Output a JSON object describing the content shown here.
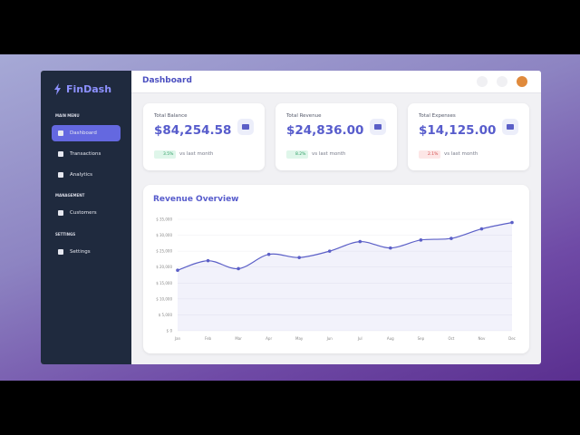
{
  "sidebar": {
    "logo": "FinDash",
    "sections": [
      {
        "heading": "MAIN MENU",
        "items": [
          "Dashboard",
          "Transactions",
          "Analytics"
        ]
      },
      {
        "heading": "MANAGEMENT",
        "items": [
          "Customers"
        ]
      },
      {
        "heading": "SETTINGS",
        "items": [
          "Settings"
        ]
      }
    ]
  },
  "header": {
    "title": "Dashboard"
  },
  "cards": [
    {
      "label": "Total Balance",
      "value": "$84,254.58",
      "change": "3.5%",
      "note": "vs last month"
    },
    {
      "label": "Total Revenue",
      "value": "$24,836.00",
      "change": "8.2%",
      "note": "vs last month"
    },
    {
      "label": "Total Expenses",
      "value": "$14,125.00",
      "change": "2.1%",
      "note": "vs last month"
    }
  ],
  "chart_data": {
    "type": "line",
    "title": "Revenue Overview",
    "color": "#5b5fc7",
    "area": true,
    "grid": true,
    "categories": [
      "Jan",
      "Feb",
      "Mar",
      "Apr",
      "May",
      "Jun",
      "Jul",
      "Aug",
      "Sep",
      "Oct",
      "Nov",
      "Dec"
    ],
    "values": [
      19000,
      22000,
      19500,
      24000,
      23000,
      25000,
      28000,
      26000,
      28500,
      29000,
      32000,
      34000
    ],
    "ylim": [
      0,
      35000
    ],
    "yticks": [
      {
        "value": 0,
        "label": "$ 0"
      },
      {
        "value": 5000,
        "label": "$ 5,000"
      },
      {
        "value": 10000,
        "label": "$ 10,000"
      },
      {
        "value": 15000,
        "label": "$ 15,000"
      },
      {
        "value": 20000,
        "label": "$ 20,000"
      },
      {
        "value": 25000,
        "label": "$ 25,000"
      },
      {
        "value": 30000,
        "label": "$ 30,000"
      },
      {
        "value": 35000,
        "label": "$ 35,000"
      }
    ]
  }
}
